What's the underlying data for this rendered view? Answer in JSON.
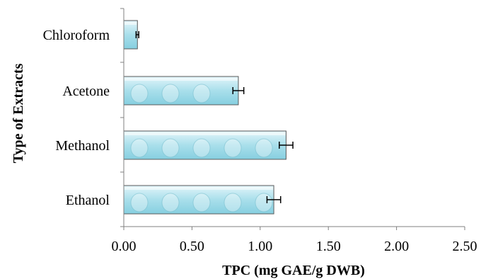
{
  "chart_data": {
    "type": "bar",
    "orientation": "horizontal",
    "categories": [
      "Chloroform",
      "Acetone",
      "Methanol",
      "Ethanol"
    ],
    "values": [
      0.1,
      0.84,
      1.19,
      1.1
    ],
    "errors": [
      0.01,
      0.04,
      0.05,
      0.05
    ],
    "xlabel": "TPC (mg GAE/g DWB)",
    "ylabel": "Type of Extracts",
    "xticks": [
      "0.00",
      "0.50",
      "1.00",
      "1.50",
      "2.00",
      "2.50"
    ],
    "xlim": [
      0,
      2.5
    ],
    "grid": false,
    "legend": "none",
    "colors": {
      "bar_fill_light": "#e2f5fa",
      "bar_fill_mid": "#a9dfeb",
      "bar_fill_dark": "#7ccbdc",
      "bar_stroke": "#5a5a5a",
      "axis": "#808080",
      "error_bar": "#000000"
    }
  }
}
